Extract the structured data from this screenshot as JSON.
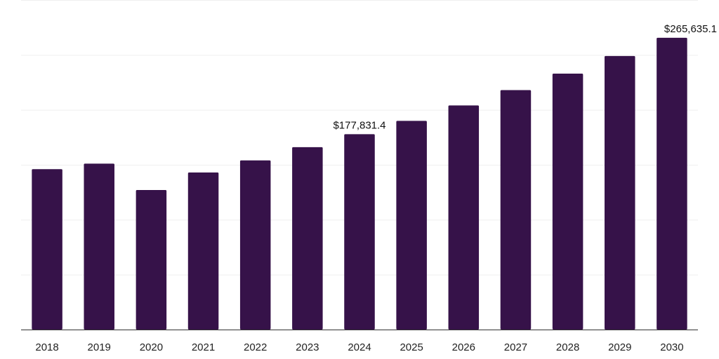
{
  "chart_data": {
    "type": "bar",
    "title": "",
    "xlabel": "",
    "ylabel": "",
    "categories": [
      "2018",
      "2019",
      "2020",
      "2021",
      "2022",
      "2023",
      "2024",
      "2025",
      "2026",
      "2027",
      "2028",
      "2029",
      "2030"
    ],
    "values": [
      146000,
      151000,
      127000,
      143000,
      154000,
      166000,
      177831.4,
      190000,
      204000,
      218000,
      233000,
      249000,
      265635.1
    ],
    "data_labels": [
      {
        "index": 6,
        "text": "$177,831.4"
      },
      {
        "index": 12,
        "text": "$265,635.1"
      }
    ],
    "ylim": [
      0,
      300000
    ],
    "y_gridlines": [
      0,
      50000,
      100000,
      150000,
      200000,
      250000,
      300000
    ],
    "y_tick_labels_visible": false,
    "grid": true,
    "legend": "none",
    "bar_color": "#361249"
  }
}
